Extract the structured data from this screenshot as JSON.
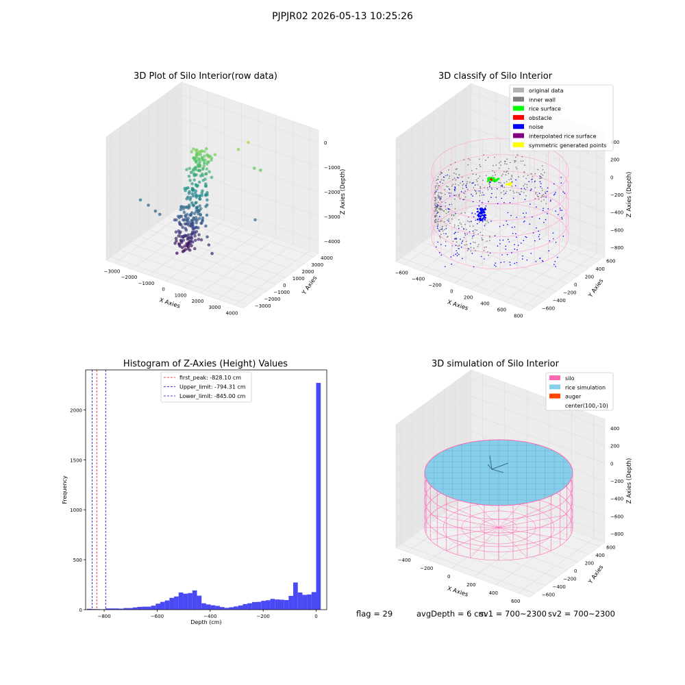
{
  "suptitle": "PJPJR02 2026-05-13 10:25:26",
  "panels": {
    "raw": {
      "title": "3D Plot of Silo Interior(row data)",
      "xlabel": "X Axies",
      "ylabel": "Y Axies",
      "zlabel": "Z Axies (Depth)",
      "xticks": [
        "−3000",
        "−2000",
        "−1000",
        "0",
        "1000",
        "2000",
        "3000",
        "4000"
      ],
      "yticks": [
        "−3000",
        "−2000",
        "−1000",
        "0",
        "1000",
        "2000",
        "3000",
        "4000"
      ],
      "zticks": [
        "0",
        "−1000",
        "−2000",
        "−3000",
        "−4000"
      ]
    },
    "classify": {
      "title": "3D classify of Silo Interior",
      "xlabel": "X Axies",
      "ylabel": "Y Axies",
      "zlabel": "Z Axies (Depth)",
      "xticks": [
        "−600",
        "−400",
        "−200",
        "0",
        "200",
        "400",
        "600",
        "800"
      ],
      "yticks": [
        "−600",
        "−400",
        "−200",
        "0",
        "200",
        "400",
        "600"
      ],
      "zticks": [
        "400",
        "200",
        "0",
        "−200",
        "−400",
        "−600",
        "−800"
      ],
      "legend": [
        {
          "label": "original data",
          "color": "#b3b3b3"
        },
        {
          "label": "inner wall",
          "color": "#808080"
        },
        {
          "label": "rice surface",
          "color": "#00ff00"
        },
        {
          "label": "obstacle",
          "color": "#ff0000"
        },
        {
          "label": "noise",
          "color": "#0000ff"
        },
        {
          "label": "interpolated rice surface",
          "color": "#800080"
        },
        {
          "label": "symmetric generated points",
          "color": "#ffff00"
        }
      ]
    },
    "simulation": {
      "title": "3D simulation of Silo Interior",
      "xlabel": "X Axies",
      "ylabel": "Y Axies",
      "zlabel": "Z Axies (Depth)",
      "xticks": [
        "−400",
        "−200",
        "0",
        "200",
        "400",
        "600"
      ],
      "yticks": [
        "−600",
        "−400",
        "−200",
        "0",
        "200",
        "400",
        "600"
      ],
      "zticks": [
        "400",
        "200",
        "0",
        "−200",
        "−400",
        "−600",
        "−800"
      ],
      "legend": [
        {
          "label": "silo",
          "color": "#ff69b4"
        },
        {
          "label": "rice simulation",
          "color": "#87ceeb"
        },
        {
          "label": "auger",
          "color": "#ff4500"
        },
        {
          "label": "center(100,-10)",
          "color": ""
        }
      ]
    }
  },
  "footer": {
    "flag": "flag = 29",
    "avg": "avgDepth = 6 cm",
    "sv1": "sv1 = 700~2300",
    "sv2": "sv2 = 700~2300"
  },
  "chart_data": [
    {
      "type": "scatter",
      "title": "3D Plot of Silo Interior(row data)",
      "xlabel": "X Axies",
      "ylabel": "Y Axies",
      "zlabel": "Z Axies (Depth)",
      "xlim": [
        -3500,
        4500
      ],
      "ylim": [
        -3500,
        4500
      ],
      "zlim": [
        -4500,
        0
      ],
      "colormap": "viridis",
      "series": [
        {
          "points": [
            [
              -800,
              1200,
              -1200
            ],
            [
              -600,
              1400,
              -1100
            ],
            [
              -400,
              1500,
              -1000
            ],
            [
              -200,
              1300,
              -1150
            ],
            [
              -700,
              900,
              -1600
            ],
            [
              -900,
              800,
              -1800
            ],
            [
              -500,
              1000,
              -1500
            ],
            [
              -300,
              1100,
              -1400
            ],
            [
              -100,
              900,
              -1700
            ],
            [
              0,
              700,
              -2000
            ],
            [
              200,
              500,
              -2300
            ],
            [
              300,
              300,
              -2600
            ],
            [
              400,
              100,
              -2900
            ],
            [
              200,
              0,
              -3100
            ],
            [
              0,
              -100,
              -3400
            ],
            [
              -200,
              -300,
              -3600
            ],
            [
              -400,
              -500,
              -3800
            ],
            [
              -600,
              -700,
              -4100
            ],
            [
              -800,
              -900,
              -4300
            ],
            [
              -500,
              -800,
              -4200
            ],
            [
              -300,
              -600,
              -3900
            ],
            [
              500,
              -200,
              -3200
            ],
            [
              700,
              -400,
              -3500
            ],
            [
              900,
              -600,
              -3700
            ],
            [
              1200,
              -800,
              -3900
            ],
            [
              -2600,
              -1500,
              -2600
            ],
            [
              -2300,
              -1200,
              -2800
            ],
            [
              -2000,
              -1000,
              -3000
            ],
            [
              -1800,
              -900,
              -3100
            ],
            [
              2400,
              1500,
              -1100
            ],
            [
              2600,
              1800,
              -1200
            ],
            [
              3000,
              500,
              -2600
            ],
            [
              1500,
              2500,
              -600
            ],
            [
              1200,
              2000,
              -800
            ]
          ]
        }
      ]
    },
    {
      "type": "scatter",
      "title": "3D classify of Silo Interior",
      "xlabel": "X Axies",
      "ylabel": "Y Axies",
      "zlabel": "Z Axies (Depth)",
      "xlim": [
        -600,
        800
      ],
      "ylim": [
        -700,
        700
      ],
      "zlim": [
        -900,
        400
      ],
      "legend_position": "top-right",
      "series": [
        {
          "name": "original data",
          "points": []
        },
        {
          "name": "inner wall",
          "points": [
            [
              -500,
              0,
              -400
            ],
            [
              -400,
              300,
              -400
            ],
            [
              0,
              500,
              -300
            ],
            [
              400,
              300,
              -500
            ],
            [
              500,
              -200,
              -500
            ],
            [
              0,
              -500,
              -600
            ],
            [
              -400,
              -300,
              -500
            ]
          ]
        },
        {
          "name": "rice surface",
          "points": [
            [
              150,
              80,
              -150
            ],
            [
              170,
              100,
              -160
            ],
            [
              130,
              60,
              -140
            ],
            [
              160,
              120,
              -170
            ]
          ]
        },
        {
          "name": "obstacle",
          "points": [
            [
              120,
              60,
              -150
            ]
          ]
        },
        {
          "name": "noise",
          "points": [
            [
              -50,
              -100,
              -400
            ],
            [
              -30,
              -80,
              -450
            ],
            [
              0,
              -50,
              -350
            ],
            [
              50,
              0,
              -300
            ],
            [
              100,
              100,
              -250
            ],
            [
              -100,
              -200,
              -500
            ],
            [
              200,
              -300,
              -600
            ],
            [
              -300,
              200,
              -550
            ]
          ]
        },
        {
          "name": "interpolated rice surface",
          "points": []
        },
        {
          "name": "symmetric generated points",
          "points": [
            [
              260,
              40,
              -170
            ],
            [
              280,
              60,
              -180
            ],
            [
              300,
              50,
              -175
            ]
          ]
        }
      ]
    },
    {
      "type": "bar",
      "title": "Histogram of Z-Axies (Height) Values",
      "xlabel": "Depth (cm)",
      "ylabel": "Frequency",
      "xlim": [
        -870,
        40
      ],
      "ylim": [
        0,
        2400
      ],
      "xticks": [
        -800,
        -600,
        -400,
        -200,
        0
      ],
      "yticks": [
        0,
        500,
        1000,
        1500,
        2000
      ],
      "bin_start": -865,
      "bin_width": 17.3,
      "values": [
        8,
        6,
        5,
        4,
        12,
        12,
        12,
        10,
        16,
        16,
        22,
        28,
        30,
        30,
        40,
        60,
        78,
        92,
        118,
        132,
        172,
        160,
        166,
        192,
        140,
        64,
        52,
        44,
        38,
        26,
        18,
        24,
        32,
        42,
        56,
        64,
        76,
        78,
        88,
        94,
        108,
        102,
        100,
        96,
        138,
        272,
        172,
        148,
        152,
        176,
        2270
      ],
      "color": "#4a4af5",
      "lines": [
        {
          "label": "first_peak: -828.10 cm",
          "x": -828.1,
          "color": "#ff0000"
        },
        {
          "label": "Upper_limit: -794.31 cm",
          "x": -794.31,
          "color": "#0000cc"
        },
        {
          "label": "Lower_limit: -845.00 cm",
          "x": -845.0,
          "color": "#0000cc"
        }
      ],
      "legend_position": "top-center"
    },
    {
      "type": "other",
      "title": "3D simulation of Silo Interior",
      "xlabel": "X Axies",
      "ylabel": "Y Axies",
      "zlabel": "Z Axies (Depth)",
      "xlim": [
        -500,
        700
      ],
      "ylim": [
        -700,
        700
      ],
      "zlim": [
        -900,
        450
      ],
      "legend_position": "top-right",
      "series": [
        {
          "name": "silo",
          "shape": "cylinder"
        },
        {
          "name": "rice simulation",
          "shape": "disc"
        },
        {
          "name": "auger"
        },
        {
          "name": "center(100,-10)"
        }
      ]
    }
  ]
}
